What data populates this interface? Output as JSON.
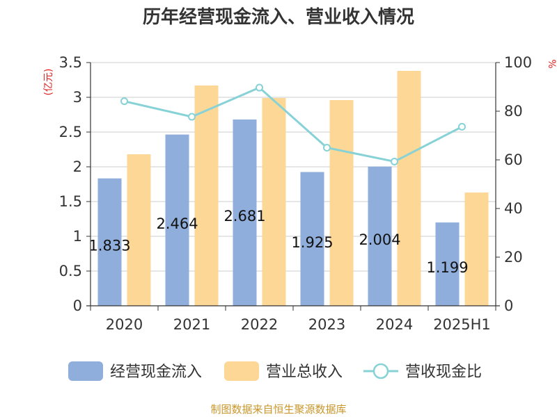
{
  "colors": {
    "inflow": "#8faedb",
    "revenue": "#fdd796",
    "ratio": "#86d2d6",
    "axis": "#333333",
    "grid": "#cccccc",
    "unit": "#e02020",
    "source": "#c9962b"
  },
  "chart_data": {
    "type": "bar",
    "title": "历年经营现金流入、营业收入情况",
    "categories": [
      "2020",
      "2021",
      "2022",
      "2023",
      "2024",
      "2025H1"
    ],
    "series": [
      {
        "name": "经营现金流入",
        "type": "bar",
        "axis": "left",
        "values": [
          1.833,
          2.464,
          2.681,
          1.925,
          2.004,
          1.199
        ],
        "labels": [
          "1.833",
          "2.464",
          "2.681",
          "1.925",
          "2.004",
          "1.199"
        ]
      },
      {
        "name": "营业总收入",
        "type": "bar",
        "axis": "left",
        "values": [
          2.18,
          3.17,
          2.99,
          2.96,
          3.38,
          1.63
        ]
      },
      {
        "name": "营收现金比",
        "type": "line",
        "axis": "right",
        "values": [
          84.1,
          77.7,
          89.7,
          65.0,
          59.3,
          73.6
        ]
      }
    ],
    "y_left": {
      "unit": "(亿元)",
      "ylim": [
        0,
        3.5
      ],
      "ticks": [
        "0",
        "0.5",
        "1",
        "1.5",
        "2",
        "2.5",
        "3",
        "3.5"
      ]
    },
    "y_right": {
      "unit": "%",
      "ylim": [
        0,
        100
      ],
      "ticks": [
        "0",
        "20",
        "40",
        "60",
        "80",
        "100"
      ]
    },
    "grid": true,
    "legend_position": "bottom"
  },
  "source_note": "制图数据来自恒生聚源数据库"
}
